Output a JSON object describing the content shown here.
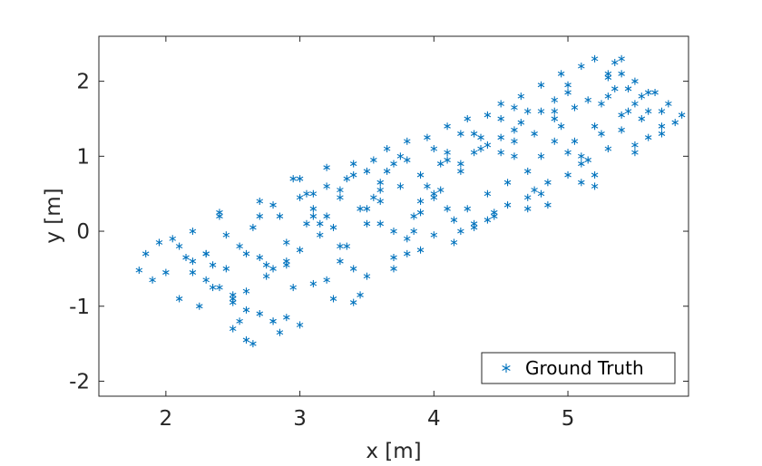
{
  "chart_data": {
    "type": "scatter",
    "title": "",
    "xlabel": "x [m]",
    "ylabel": "y [m]",
    "xlim": [
      1.5,
      5.9
    ],
    "ylim": [
      -2.2,
      2.6
    ],
    "xticks": [
      2,
      3,
      4,
      5
    ],
    "yticks": [
      -2,
      -1,
      0,
      1,
      2
    ],
    "xtick_labels": [
      "2",
      "3",
      "4",
      "5"
    ],
    "ytick_labels": [
      "-2",
      "-1",
      "0",
      "1",
      "2"
    ],
    "grid": false,
    "legend": {
      "placement": "bottom-right",
      "entries": [
        "Ground Truth"
      ]
    },
    "series": [
      {
        "name": "Ground Truth",
        "marker": "asterisk",
        "color": "#0072BD",
        "x": [
          1.8,
          1.85,
          1.9,
          1.95,
          2.0,
          2.05,
          2.1,
          2.15,
          2.2,
          2.25,
          2.3,
          2.35,
          2.4,
          2.45,
          2.5,
          2.55,
          2.6,
          2.65,
          2.7,
          2.75,
          2.8,
          2.85,
          2.9,
          2.95,
          3.0,
          3.05,
          3.1,
          3.15,
          3.2,
          3.25,
          3.3,
          3.35,
          3.4,
          3.45,
          3.5,
          3.55,
          3.6,
          3.65,
          3.7,
          3.75,
          3.8,
          3.85,
          3.9,
          3.95,
          4.0,
          4.05,
          4.1,
          4.15,
          4.2,
          4.25,
          4.3,
          4.35,
          4.4,
          4.45,
          4.5,
          4.55,
          4.6,
          4.65,
          4.7,
          4.75,
          4.8,
          4.85,
          4.9,
          4.95,
          5.0,
          5.05,
          5.1,
          5.15,
          5.2,
          5.25,
          5.3,
          5.35,
          5.4,
          5.45,
          5.5,
          5.55,
          5.6,
          5.65,
          5.7,
          5.75,
          5.8,
          5.85,
          2.1,
          2.2,
          2.3,
          2.4,
          2.5,
          2.6,
          2.7,
          2.8,
          2.9,
          3.0,
          3.1,
          3.2,
          3.3,
          3.4,
          3.5,
          3.6,
          3.7,
          3.8,
          3.9,
          4.0,
          4.1,
          4.2,
          4.3,
          4.4,
          4.5,
          4.6,
          4.7,
          4.8,
          4.9,
          5.0,
          5.1,
          5.2,
          5.3,
          5.4,
          5.5,
          5.6,
          5.7,
          2.2,
          2.35,
          2.5,
          2.65,
          2.8,
          2.95,
          3.1,
          3.25,
          3.4,
          3.55,
          3.7,
          3.85,
          4.0,
          4.15,
          4.3,
          4.45,
          4.6,
          4.75,
          4.9,
          5.05,
          5.2,
          5.35,
          5.5,
          2.3,
          2.45,
          2.6,
          2.75,
          2.9,
          3.05,
          3.2,
          3.35,
          3.5,
          3.65,
          3.8,
          3.95,
          4.1,
          4.25,
          4.4,
          4.55,
          4.7,
          4.85,
          5.0,
          5.15,
          5.3,
          5.45,
          2.4,
          2.55,
          2.7,
          2.85,
          3.0,
          3.15,
          3.3,
          3.45,
          3.6,
          3.75,
          3.9,
          4.05,
          4.2,
          4.35,
          4.5,
          4.65,
          4.8,
          4.95,
          5.1,
          5.25,
          5.4,
          5.55,
          5.7,
          2.6,
          2.8,
          3.0,
          3.2,
          3.4,
          3.6,
          3.8,
          4.0,
          4.2,
          4.4,
          4.6,
          4.8,
          5.0,
          5.2,
          5.4,
          5.6,
          2.5,
          2.7,
          2.9,
          3.1,
          3.3,
          3.5,
          3.7,
          3.9,
          4.1,
          4.3,
          4.5,
          4.7,
          4.9,
          5.1,
          5.3,
          5.5
        ],
        "y": [
          -0.52,
          -0.3,
          -0.65,
          -0.15,
          -0.55,
          -0.1,
          -0.9,
          -0.35,
          -0.4,
          -1.0,
          -0.3,
          -0.75,
          0.2,
          -0.5,
          -1.3,
          -0.2,
          -0.8,
          -1.5,
          0.4,
          -0.6,
          -1.2,
          0.2,
          -0.4,
          0.7,
          -0.25,
          0.5,
          -0.7,
          0.1,
          0.85,
          -0.9,
          0.45,
          -0.2,
          0.9,
          0.3,
          -0.6,
          0.95,
          0.1,
          1.1,
          -0.35,
          0.6,
          1.2,
          0.0,
          0.75,
          1.25,
          -0.05,
          0.55,
          1.4,
          0.15,
          0.9,
          1.5,
          0.05,
          1.1,
          1.55,
          0.25,
          1.7,
          0.35,
          1.2,
          1.8,
          0.45,
          1.3,
          1.95,
          0.65,
          1.5,
          2.1,
          0.75,
          1.65,
          2.2,
          0.95,
          2.3,
          1.7,
          1.1,
          2.25,
          1.35,
          1.9,
          2.0,
          1.5,
          1.6,
          1.85,
          1.3,
          1.7,
          1.45,
          1.55,
          -0.2,
          0.0,
          -0.65,
          0.25,
          -0.9,
          -0.3,
          -1.1,
          0.35,
          -0.15,
          0.7,
          0.2,
          0.6,
          -0.4,
          0.75,
          0.3,
          0.55,
          -0.5,
          0.95,
          0.4,
          1.1,
          0.3,
          0.8,
          1.3,
          0.5,
          1.5,
          1.0,
          0.8,
          1.6,
          1.2,
          1.85,
          1.0,
          1.4,
          2.05,
          1.55,
          1.7,
          1.25,
          1.6,
          -0.55,
          -0.45,
          -0.95,
          0.05,
          -1.2,
          -0.75,
          0.3,
          0.05,
          -0.5,
          0.45,
          0.0,
          0.2,
          0.5,
          -0.15,
          1.05,
          0.2,
          1.35,
          0.55,
          1.75,
          1.2,
          0.75,
          1.9,
          1.05,
          -0.3,
          -0.05,
          -1.05,
          -0.45,
          -1.15,
          0.1,
          -0.65,
          0.7,
          0.1,
          0.8,
          -0.3,
          0.6,
          0.95,
          0.3,
          1.15,
          0.65,
          1.6,
          0.35,
          1.05,
          1.75,
          2.1,
          1.6,
          -0.75,
          -1.2,
          -0.35,
          -1.35,
          0.45,
          -0.05,
          0.55,
          -0.85,
          0.4,
          1.0,
          0.25,
          0.9,
          0.0,
          1.25,
          1.05,
          1.45,
          1.0,
          1.4,
          0.9,
          1.3,
          2.1,
          1.8,
          1.4,
          -1.45,
          -0.5,
          -1.25,
          0.2,
          -0.95,
          0.65,
          -0.1,
          0.45,
          1.3,
          0.15,
          1.65,
          0.5,
          1.95,
          0.6,
          2.3,
          1.85,
          -0.85,
          0.2,
          -0.45,
          0.5,
          -0.2,
          0.8,
          0.9,
          -0.25,
          1.05,
          0.1,
          1.25,
          0.3,
          1.6,
          0.65,
          1.8,
          1.15
        ]
      }
    ]
  }
}
